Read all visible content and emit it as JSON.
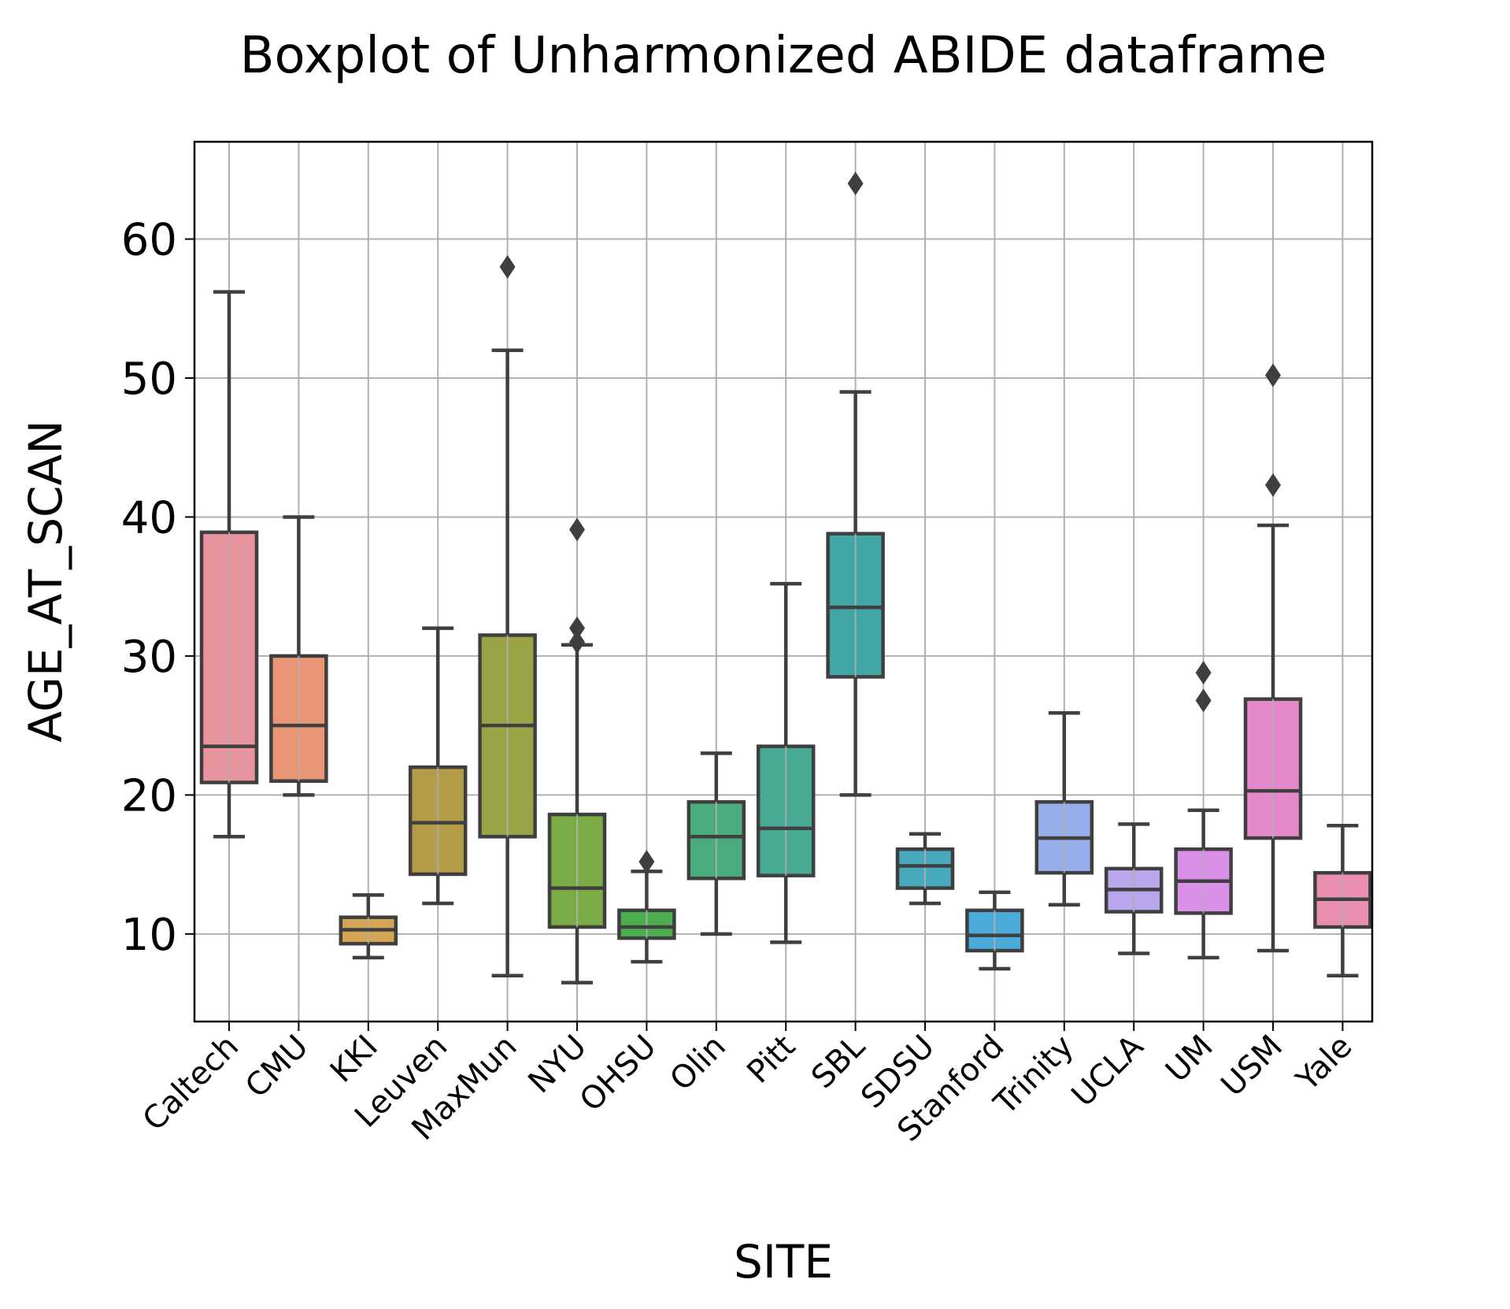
{
  "chart_data": {
    "type": "boxplot",
    "title": "Boxplot of Unharmonized ABIDE dataframe",
    "xlabel": "SITE",
    "ylabel": "AGE_AT_SCAN",
    "ylim": [
      3.7,
      67
    ],
    "yticks": [
      10,
      20,
      30,
      40,
      50,
      60
    ],
    "grid": true,
    "legend": "none",
    "categories": [
      "Caltech",
      "CMU",
      "KKI",
      "Leuven",
      "MaxMun",
      "NYU",
      "OHSU",
      "Olin",
      "Pitt",
      "SBL",
      "SDSU",
      "Stanford",
      "Trinity",
      "UCLA",
      "UM",
      "USM",
      "Yale"
    ],
    "boxes": [
      {
        "site": "Caltech",
        "whisker_low": 17.0,
        "q1": 20.9,
        "median": 23.5,
        "q3": 38.9,
        "whisker_high": 56.2,
        "outliers": [],
        "color": "#e8949f"
      },
      {
        "site": "CMU",
        "whisker_low": 20.0,
        "q1": 21.0,
        "median": 25.0,
        "q3": 30.0,
        "whisker_high": 40.0,
        "outliers": [],
        "color": "#e99677"
      },
      {
        "site": "KKI",
        "whisker_low": 8.3,
        "q1": 9.3,
        "median": 10.3,
        "q3": 11.2,
        "whisker_high": 12.8,
        "outliers": [],
        "color": "#d4a455"
      },
      {
        "site": "Leuven",
        "whisker_low": 12.2,
        "q1": 14.3,
        "median": 18.0,
        "q3": 22.0,
        "whisker_high": 32.0,
        "outliers": [],
        "color": "#b39b48"
      },
      {
        "site": "MaxMun",
        "whisker_low": 7.0,
        "q1": 17.0,
        "median": 25.0,
        "q3": 31.5,
        "whisker_high": 52.0,
        "outliers": [
          58.0
        ],
        "color": "#9aa345"
      },
      {
        "site": "NYU",
        "whisker_low": 6.5,
        "q1": 10.5,
        "median": 13.3,
        "q3": 18.6,
        "whisker_high": 30.8,
        "outliers": [
          31.0,
          32.0,
          39.1
        ],
        "color": "#7bab45"
      },
      {
        "site": "OHSU",
        "whisker_low": 8.0,
        "q1": 9.7,
        "median": 10.5,
        "q3": 11.7,
        "whisker_high": 14.5,
        "outliers": [
          15.2
        ],
        "color": "#4cae4e"
      },
      {
        "site": "Olin",
        "whisker_low": 10.0,
        "q1": 14.0,
        "median": 17.0,
        "q3": 19.5,
        "whisker_high": 23.0,
        "outliers": [],
        "color": "#4aab7c"
      },
      {
        "site": "Pitt",
        "whisker_low": 9.4,
        "q1": 14.2,
        "median": 17.6,
        "q3": 23.5,
        "whisker_high": 35.2,
        "outliers": [],
        "color": "#49aa94"
      },
      {
        "site": "SBL",
        "whisker_low": 20.0,
        "q1": 28.5,
        "median": 33.5,
        "q3": 38.8,
        "whisker_high": 49.0,
        "outliers": [
          64.0
        ],
        "color": "#41a6a5"
      },
      {
        "site": "SDSU",
        "whisker_low": 12.2,
        "q1": 13.3,
        "median": 14.9,
        "q3": 16.1,
        "whisker_high": 17.2,
        "outliers": [],
        "color": "#48a8bc"
      },
      {
        "site": "Stanford",
        "whisker_low": 7.5,
        "q1": 8.8,
        "median": 9.9,
        "q3": 11.7,
        "whisker_high": 13.0,
        "outliers": [],
        "color": "#4aaad9"
      },
      {
        "site": "Trinity",
        "whisker_low": 12.1,
        "q1": 14.4,
        "median": 16.9,
        "q3": 19.5,
        "whisker_high": 25.9,
        "outliers": [],
        "color": "#98aeea"
      },
      {
        "site": "UCLA",
        "whisker_low": 8.6,
        "q1": 11.6,
        "median": 13.2,
        "q3": 14.7,
        "whisker_high": 17.9,
        "outliers": [],
        "color": "#b9a6ec"
      },
      {
        "site": "UM",
        "whisker_low": 8.3,
        "q1": 11.5,
        "median": 13.8,
        "q3": 16.1,
        "whisker_high": 18.9,
        "outliers": [
          26.8,
          28.8
        ],
        "color": "#da8fe8"
      },
      {
        "site": "USM",
        "whisker_low": 8.8,
        "q1": 16.9,
        "median": 20.3,
        "q3": 26.9,
        "whisker_high": 39.4,
        "outliers": [
          42.3,
          50.2
        ],
        "color": "#e688cc"
      },
      {
        "site": "Yale",
        "whisker_low": 7.0,
        "q1": 10.5,
        "median": 12.5,
        "q3": 14.4,
        "whisker_high": 17.8,
        "outliers": [],
        "color": "#e88eb0"
      }
    ]
  }
}
